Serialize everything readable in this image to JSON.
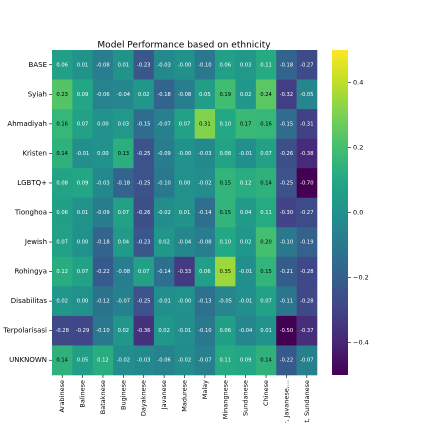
{
  "chart_data": {
    "type": "heatmap",
    "title": "Model Performance based on ethnicity",
    "colormap": "viridis",
    "clim": [
      -0.5,
      0.5
    ],
    "rows": [
      "BASE",
      "Syiah",
      "Ahmadiyah",
      "Kristen",
      "LGBTQ+",
      "Tionghoa",
      "Jewish",
      "Rohingya",
      "Disabilitas",
      "Terpolarisasi",
      "UNKNOWN"
    ],
    "columns": [
      "Arabinese",
      "Balinese",
      "Bataknese",
      "Buginese",
      "Dayaknese",
      "Javanese",
      "Madurese",
      "Malay",
      "Minangnese",
      "Sundanese",
      "Chinese",
      "r, Javanese,...",
      "st, Sundanese"
    ],
    "values": [
      [
        0.06,
        0.01,
        -0.08,
        0.01,
        -0.23,
        -0.03,
        -0.0,
        -0.1,
        0.06,
        0.03,
        0.11,
        -0.18,
        -0.27
      ],
      [
        0.23,
        0.09,
        -0.06,
        -0.04,
        0.02,
        -0.18,
        -0.08,
        0.05,
        0.19,
        0.02,
        0.24,
        -0.32,
        -0.05
      ],
      [
        0.16,
        0.07,
        0.0,
        0.03,
        -0.15,
        -0.07,
        0.07,
        0.31,
        0.1,
        0.17,
        0.16,
        -0.15,
        -0.31
      ],
      [
        0.14,
        -0.01,
        0.0,
        0.13,
        -0.25,
        -0.09,
        -0.0,
        -0.03,
        0.08,
        -0.01,
        0.07,
        -0.26,
        -0.38
      ],
      [
        0.08,
        0.09,
        -0.03,
        -0.18,
        -0.25,
        -0.1,
        0.0,
        -0.02,
        0.15,
        0.12,
        0.14,
        -0.25,
        -0.7
      ],
      [
        0.06,
        0.01,
        -0.09,
        0.07,
        -0.26,
        -0.02,
        0.01,
        -0.14,
        0.15,
        0.04,
        0.11,
        -0.3,
        -0.27
      ],
      [
        0.07,
        0.0,
        -0.18,
        0.04,
        -0.23,
        0.02,
        -0.04,
        -0.08,
        0.1,
        0.02,
        0.2,
        -0.1,
        -0.19
      ],
      [
        0.12,
        0.07,
        -0.22,
        -0.08,
        0.07,
        -0.14,
        -0.33,
        0.06,
        0.35,
        -0.01,
        0.15,
        -0.21,
        -0.28
      ],
      [
        0.02,
        0.0,
        -0.12,
        -0.07,
        -0.25,
        -0.01,
        -0.0,
        -0.13,
        -0.05,
        -0.01,
        0.07,
        -0.11,
        -0.28
      ],
      [
        -0.28,
        -0.29,
        -0.1,
        0.02,
        -0.36,
        0.02,
        -0.01,
        -0.1,
        0.06,
        -0.04,
        0.01,
        -0.5,
        -0.37
      ],
      [
        0.14,
        0.05,
        0.12,
        -0.02,
        -0.03,
        -0.06,
        -0.02,
        -0.07,
        0.11,
        0.09,
        0.14,
        -0.22,
        -0.07
      ]
    ],
    "value_labels": [
      [
        "0.06",
        "0.01",
        "-0.08",
        "0.01",
        "-0.23",
        "-0.03",
        "-0.00",
        "-0.10",
        "0.06",
        "0.03",
        "0.11",
        "-0.18",
        "-0.27"
      ],
      [
        "0.23",
        "0.09",
        "-0.06",
        "-0.04",
        "0.02",
        "-0.18",
        "-0.08",
        "0.05",
        "0.19",
        "0.02",
        "0.24",
        "-0.32",
        "-0.05"
      ],
      [
        "0.16",
        "0.07",
        "0.00",
        "0.03",
        "-0.15",
        "-0.07",
        "0.07",
        "0.31",
        "0.10",
        "0.17",
        "0.16",
        "-0.15",
        "-0.31"
      ],
      [
        "0.14",
        "-0.01",
        "0.00",
        "0.13",
        "-0.25",
        "-0.09",
        "-0.00",
        "-0.03",
        "0.08",
        "-0.01",
        "0.07",
        "-0.26",
        "-0.38"
      ],
      [
        "0.08",
        "0.09",
        "-0.03",
        "-0.18",
        "-0.25",
        "-0.10",
        "0.00",
        "-0.02",
        "0.15",
        "0.12",
        "0.14",
        "-0.25",
        "-0.70"
      ],
      [
        "0.06",
        "0.01",
        "-0.09",
        "0.07",
        "-0.26",
        "-0.02",
        "0.01",
        "-0.14",
        "0.15",
        "0.04",
        "0.11",
        "-0.30",
        "-0.27"
      ],
      [
        "0.07",
        "0.00",
        "-0.18",
        "0.04",
        "-0.23",
        "0.02",
        "-0.04",
        "-0.08",
        "0.10",
        "0.02",
        "0.20",
        "-0.10",
        "-0.19"
      ],
      [
        "0.12",
        "0.07",
        "-0.22",
        "-0.08",
        "0.07",
        "-0.14",
        "-0.33",
        "0.06",
        "0.35",
        "-0.01",
        "0.15",
        "-0.21",
        "-0.28"
      ],
      [
        "0.02",
        "0.00",
        "-0.12",
        "-0.07",
        "-0.25",
        "-0.01",
        "-0.00",
        "-0.13",
        "-0.05",
        "-0.01",
        "0.07",
        "-0.11",
        "-0.28"
      ],
      [
        "-0.28",
        "-0.29",
        "-0.10",
        "0.02",
        "-0.36",
        "0.02",
        "-0.01",
        "-0.10",
        "0.06",
        "-0.04",
        "0.01",
        "-0.50",
        "-0.37"
      ],
      [
        "0.14",
        "0.05",
        "0.12",
        "-0.02",
        "-0.03",
        "-0.06",
        "-0.02",
        "-0.07",
        "0.11",
        "0.09",
        "0.14",
        "-0.22",
        "-0.07"
      ]
    ],
    "colorbar_ticks": [
      {
        "value": -0.4,
        "label": "−0.4"
      },
      {
        "value": -0.2,
        "label": "−0.2"
      },
      {
        "value": 0.0,
        "label": "0.0"
      },
      {
        "value": 0.2,
        "label": "0.2"
      },
      {
        "value": 0.4,
        "label": "0.4"
      }
    ]
  }
}
